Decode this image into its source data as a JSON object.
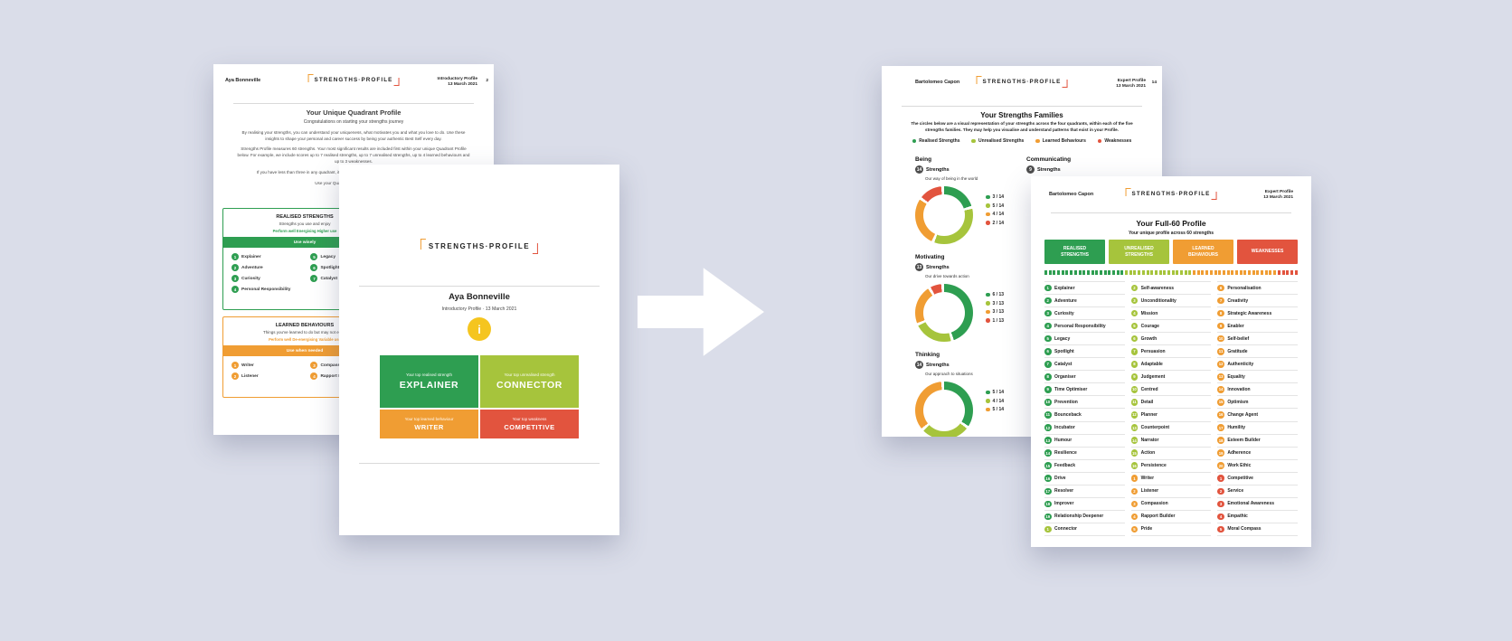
{
  "colors": {
    "bg": "#dadde9",
    "green": "#2e9e51",
    "lightgreen": "#a6c43c",
    "orange": "#f09d33",
    "red": "#e2543e",
    "yellow": "#f5c51f",
    "badge": "#4d4d4d"
  },
  "arrow": {
    "name": "transform-arrow"
  },
  "left_back": {
    "header": {
      "name": "Aya Bonneville",
      "profile": "Introductory Profile",
      "date": "13 March 2021",
      "page": "2"
    },
    "logo": "STRENGTHS·PROFILE",
    "title": "Your Unique Quadrant Profile",
    "subtitle": "Congratulations on starting your strengths journey",
    "paragraphs": [
      "By realising your strengths, you can understand your uniqueness, what motivates you and what you love to do. Use these insights to shape your personal and career success by being your authentic Best Self every day.",
      "Strengths Profile measures 60 strengths. Your most significant results are included first within your unique Quadrant Profile below. For example, we include scores up to 7 realised strengths, up to 7 unrealised strengths, up to 4 learned behaviours and up to 3 weaknesses.",
      "If you have less than three in any quadrant, it simply means that your responses were more aligned to the",
      "Use your Quadrant Profile, and the advice"
    ],
    "realised_box": {
      "title": "REALISED STRENGTHS",
      "subtitle": "Strengths you use and enjoy",
      "tags": "Perform well    Energising    Higher use",
      "band": "Use wisely",
      "items_left": [
        {
          "n": "1",
          "label": "Explainer"
        },
        {
          "n": "2",
          "label": "Adventure"
        },
        {
          "n": "3",
          "label": "Curiosity"
        },
        {
          "n": "4",
          "label": "Personal Responsibility"
        }
      ],
      "items_right": [
        {
          "n": "5",
          "label": "Legacy"
        },
        {
          "n": "6",
          "label": "Spotlight"
        },
        {
          "n": "7",
          "label": "Catalyst"
        }
      ]
    },
    "learned_box": {
      "title": "LEARNED BEHAVIOURS",
      "subtitle": "Things you've learned to do but may not enjoy",
      "tags": "Perform well    De-energising    Variable use",
      "band": "Use when needed",
      "items_left": [
        {
          "n": "1",
          "label": "Writer"
        },
        {
          "n": "2",
          "label": "Listener"
        }
      ],
      "items_right": [
        {
          "n": "3",
          "label": "Compassion"
        },
        {
          "n": "4",
          "label": "Rapport Builder"
        }
      ]
    }
  },
  "left_front": {
    "logo": "STRENGTHS·PROFILE",
    "name": "Aya Bonneville",
    "subtitle": "Introductory Profile  ·  13 March 2021",
    "icon": "i",
    "quadrants": [
      {
        "caption": "Your top realised strength",
        "label": "EXPLAINER",
        "color": "green"
      },
      {
        "caption": "Your top unrealised strength",
        "label": "CONNECTOR",
        "color": "lightgreen"
      },
      {
        "caption": "Your top learned behaviour",
        "label": "WRITER",
        "color": "orange"
      },
      {
        "caption": "Your top weakness",
        "label": "COMPETITIVE",
        "color": "red"
      }
    ]
  },
  "right_back": {
    "header": {
      "name": "Bartolomeo Capon",
      "profile": "Expert Profile",
      "date": "13 March 2021",
      "page": "14"
    },
    "logo": "STRENGTHS·PROFILE",
    "title": "Your Strengths Families",
    "intro": "The circles below are a visual representation of your strengths across the four quadrants, within each of the five strengths families. They may help you visualise and understand patterns that exist in your Profile.",
    "legend": [
      {
        "label": "Realised Strengths",
        "color": "green"
      },
      {
        "label": "Unrealised Strengths",
        "color": "lightgreen"
      },
      {
        "label": "Learned Behaviours",
        "color": "orange"
      },
      {
        "label": "Weaknesses",
        "color": "red"
      }
    ],
    "families": [
      {
        "id": "being",
        "name": "Being",
        "count": "14",
        "count_label": "Strengths",
        "desc": "Our way of being in the world",
        "total": 14,
        "segments": [
          {
            "label": "3 / 14",
            "value": 3,
            "color": "green"
          },
          {
            "label": "5 / 14",
            "value": 5,
            "color": "lightgreen"
          },
          {
            "label": "4 / 14",
            "value": 4,
            "color": "orange"
          },
          {
            "label": "2 / 14",
            "value": 2,
            "color": "red"
          }
        ]
      },
      {
        "id": "motivating",
        "name": "Motivating",
        "count": "13",
        "count_label": "Strengths",
        "desc": "Our drive towards action",
        "total": 13,
        "segments": [
          {
            "label": "6 / 13",
            "value": 6,
            "color": "green"
          },
          {
            "label": "3 / 13",
            "value": 3,
            "color": "lightgreen"
          },
          {
            "label": "3 / 13",
            "value": 3,
            "color": "orange"
          },
          {
            "label": "1 / 13",
            "value": 1,
            "color": "red"
          }
        ]
      },
      {
        "id": "thinking",
        "name": "Thinking",
        "count": "14",
        "count_label": "Strengths",
        "desc": "Our approach to situations",
        "total": 14,
        "segments": [
          {
            "label": "5 / 14",
            "value": 5,
            "color": "green"
          },
          {
            "label": "4 / 14",
            "value": 4,
            "color": "lightgreen"
          },
          {
            "label": "5 / 14",
            "value": 5,
            "color": "orange"
          }
        ]
      },
      {
        "id": "communicating",
        "name": "Communicating",
        "count": "9",
        "count_label": "Strengths",
        "desc": "",
        "total": 9,
        "segments": []
      }
    ]
  },
  "right_front": {
    "header": {
      "name": "Bartolomeo Capon",
      "profile": "Expert Profile",
      "date": "13 March 2021"
    },
    "logo": "STRENGTHS·PROFILE",
    "title": "Your Full-60 Profile",
    "subtitle": "Your unique profile across 60 strengths",
    "chips": [
      {
        "label": "REALISED STRENGTHS",
        "color": "green"
      },
      {
        "label": "UNREALISED STRENGTHS",
        "color": "lightgreen"
      },
      {
        "label": "LEARNED BEHAVIOURS",
        "color": "orange"
      },
      {
        "label": "WEAKNESSES",
        "color": "red"
      }
    ],
    "strip_counts": [
      {
        "color": "green",
        "count": 19
      },
      {
        "color": "lightgreen",
        "count": 16
      },
      {
        "color": "orange",
        "count": 20
      },
      {
        "color": "red",
        "count": 5
      }
    ],
    "columns": [
      [
        {
          "n": "1",
          "label": "Explainer",
          "color": "green"
        },
        {
          "n": "2",
          "label": "Adventure",
          "color": "green"
        },
        {
          "n": "3",
          "label": "Curiosity",
          "color": "green"
        },
        {
          "n": "4",
          "label": "Personal Responsibility",
          "color": "green"
        },
        {
          "n": "5",
          "label": "Legacy",
          "color": "green"
        },
        {
          "n": "6",
          "label": "Spotlight",
          "color": "green"
        },
        {
          "n": "7",
          "label": "Catalyst",
          "color": "green"
        },
        {
          "n": "8",
          "label": "Organiser",
          "color": "green"
        },
        {
          "n": "9",
          "label": "Time Optimiser",
          "color": "green"
        },
        {
          "n": "10",
          "label": "Prevention",
          "color": "green"
        },
        {
          "n": "11",
          "label": "Bounceback",
          "color": "green"
        },
        {
          "n": "12",
          "label": "Incubator",
          "color": "green"
        },
        {
          "n": "13",
          "label": "Humour",
          "color": "green"
        },
        {
          "n": "14",
          "label": "Resilience",
          "color": "green"
        },
        {
          "n": "15",
          "label": "Feedback",
          "color": "green"
        },
        {
          "n": "16",
          "label": "Drive",
          "color": "green"
        },
        {
          "n": "17",
          "label": "Resolver",
          "color": "green"
        },
        {
          "n": "18",
          "label": "Improver",
          "color": "green"
        },
        {
          "n": "19",
          "label": "Relationship Deepener",
          "color": "green"
        },
        {
          "n": "1",
          "label": "Connector",
          "color": "lightgreen"
        }
      ],
      [
        {
          "n": "2",
          "label": "Self-awareness",
          "color": "lightgreen"
        },
        {
          "n": "3",
          "label": "Unconditionality",
          "color": "lightgreen"
        },
        {
          "n": "4",
          "label": "Mission",
          "color": "lightgreen"
        },
        {
          "n": "5",
          "label": "Courage",
          "color": "lightgreen"
        },
        {
          "n": "6",
          "label": "Growth",
          "color": "lightgreen"
        },
        {
          "n": "7",
          "label": "Persuasion",
          "color": "lightgreen"
        },
        {
          "n": "8",
          "label": "Adaptable",
          "color": "lightgreen"
        },
        {
          "n": "9",
          "label": "Judgement",
          "color": "lightgreen"
        },
        {
          "n": "10",
          "label": "Centred",
          "color": "lightgreen"
        },
        {
          "n": "11",
          "label": "Detail",
          "color": "lightgreen"
        },
        {
          "n": "12",
          "label": "Planner",
          "color": "lightgreen"
        },
        {
          "n": "13",
          "label": "Counterpoint",
          "color": "lightgreen"
        },
        {
          "n": "14",
          "label": "Narrator",
          "color": "lightgreen"
        },
        {
          "n": "15",
          "label": "Action",
          "color": "lightgreen"
        },
        {
          "n": "16",
          "label": "Persistence",
          "color": "lightgreen"
        },
        {
          "n": "1",
          "label": "Writer",
          "color": "orange"
        },
        {
          "n": "2",
          "label": "Listener",
          "color": "orange"
        },
        {
          "n": "3",
          "label": "Compassion",
          "color": "orange"
        },
        {
          "n": "4",
          "label": "Rapport Builder",
          "color": "orange"
        },
        {
          "n": "5",
          "label": "Pride",
          "color": "orange"
        }
      ],
      [
        {
          "n": "6",
          "label": "Personalisation",
          "color": "orange"
        },
        {
          "n": "7",
          "label": "Creativity",
          "color": "orange"
        },
        {
          "n": "8",
          "label": "Strategic Awareness",
          "color": "orange"
        },
        {
          "n": "9",
          "label": "Enabler",
          "color": "orange"
        },
        {
          "n": "10",
          "label": "Self-belief",
          "color": "orange"
        },
        {
          "n": "11",
          "label": "Gratitude",
          "color": "orange"
        },
        {
          "n": "12",
          "label": "Authenticity",
          "color": "orange"
        },
        {
          "n": "13",
          "label": "Equality",
          "color": "orange"
        },
        {
          "n": "14",
          "label": "Innovation",
          "color": "orange"
        },
        {
          "n": "15",
          "label": "Optimism",
          "color": "orange"
        },
        {
          "n": "16",
          "label": "Change Agent",
          "color": "orange"
        },
        {
          "n": "17",
          "label": "Humility",
          "color": "orange"
        },
        {
          "n": "18",
          "label": "Esteem Builder",
          "color": "orange"
        },
        {
          "n": "19",
          "label": "Adherence",
          "color": "orange"
        },
        {
          "n": "20",
          "label": "Work Ethic",
          "color": "orange"
        },
        {
          "n": "1",
          "label": "Competitive",
          "color": "red"
        },
        {
          "n": "2",
          "label": "Service",
          "color": "red"
        },
        {
          "n": "3",
          "label": "Emotional Awareness",
          "color": "red"
        },
        {
          "n": "4",
          "label": "Empathic",
          "color": "red"
        },
        {
          "n": "5",
          "label": "Moral Compass",
          "color": "red"
        }
      ]
    ]
  }
}
